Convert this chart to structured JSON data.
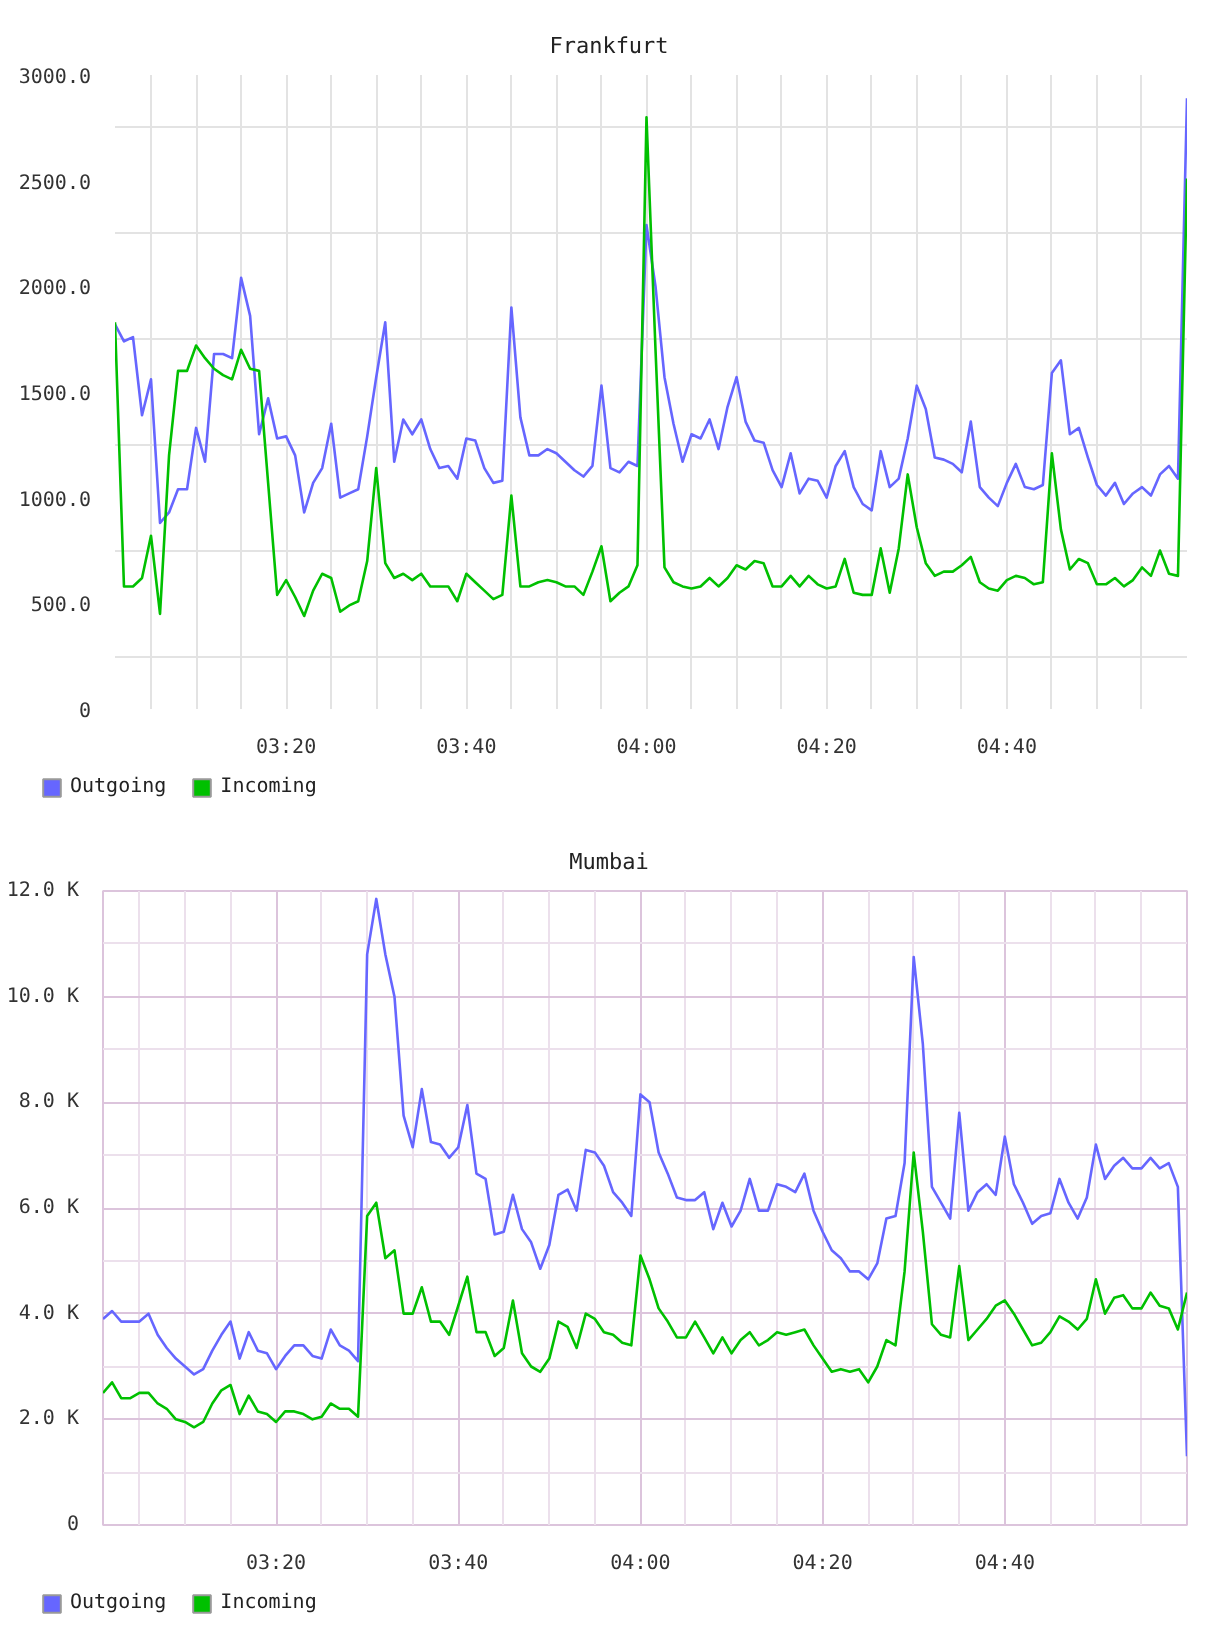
{
  "chart_data": [
    {
      "type": "line",
      "title": "Frankfurt",
      "x": [
        3.0167,
        3.0333,
        3.05,
        3.0667,
        3.0833,
        3.1,
        3.1167,
        3.1333,
        3.15,
        3.1667,
        3.1833,
        3.2,
        3.2167,
        3.2333,
        3.25,
        3.2667,
        3.2833,
        3.3,
        3.3167,
        3.3333,
        3.35,
        3.3667,
        3.3833,
        3.4,
        3.4167,
        3.4333,
        3.45,
        3.4667,
        3.4833,
        3.5,
        3.5167,
        3.5333,
        3.55,
        3.5667,
        3.5833,
        3.6,
        3.6167,
        3.6333,
        3.65,
        3.6667,
        3.6833,
        3.7,
        3.7167,
        3.7333,
        3.75,
        3.7667,
        3.7833,
        3.8,
        3.8167,
        3.8333,
        3.85,
        3.8667,
        3.8833,
        3.9,
        3.9167,
        3.9333,
        3.95,
        3.9667,
        3.9833,
        4.0,
        4.0167,
        4.0333,
        4.05,
        4.0667,
        4.0833,
        4.1,
        4.1167,
        4.1333,
        4.15,
        4.1667,
        4.1833,
        4.2,
        4.2167,
        4.2333,
        4.25,
        4.2667,
        4.2833,
        4.3,
        4.3167,
        4.3333,
        4.35,
        4.3667,
        4.3833,
        4.4,
        4.4167,
        4.4333,
        4.45,
        4.4667,
        4.4833,
        4.5,
        4.5167,
        4.5333,
        4.55,
        4.5667,
        4.5833,
        4.6,
        4.6167,
        4.6333,
        4.65,
        4.6667,
        4.6833,
        4.7,
        4.7167,
        4.7333,
        4.75,
        4.7667,
        4.7833,
        4.8,
        4.8167,
        4.8333,
        4.85,
        4.8667,
        4.8833,
        4.9,
        4.9167,
        4.9333,
        4.95,
        4.9667,
        4.9833,
        5.0
      ],
      "series": [
        {
          "name": "Outgoing",
          "color": "#6666ff",
          "values": [
            1820,
            1740,
            1760,
            1390,
            1560,
            880,
            930,
            1040,
            1040,
            1330,
            1170,
            1680,
            1680,
            1660,
            2040,
            1860,
            1300,
            1470,
            1280,
            1290,
            1200,
            930,
            1070,
            1140,
            1350,
            1000,
            1020,
            1040,
            1290,
            1570,
            1830,
            1170,
            1370,
            1300,
            1370,
            1230,
            1140,
            1150,
            1090,
            1280,
            1270,
            1140,
            1070,
            1080,
            1900,
            1380,
            1200,
            1200,
            1230,
            1210,
            1170,
            1130,
            1100,
            1150,
            1530,
            1140,
            1120,
            1170,
            1150,
            2290,
            2000,
            1570,
            1350,
            1170,
            1300,
            1280,
            1370,
            1230,
            1430,
            1570,
            1360,
            1270,
            1260,
            1130,
            1050,
            1210,
            1020,
            1090,
            1080,
            1000,
            1150,
            1220,
            1050,
            970,
            940,
            1220,
            1050,
            1090,
            1280,
            1530,
            1420,
            1190,
            1180,
            1160,
            1120,
            1360,
            1050,
            1000,
            960,
            1070,
            1160,
            1050,
            1040,
            1060,
            1590,
            1650,
            1300,
            1330,
            1190,
            1060,
            1010,
            1070,
            970,
            1020,
            1050,
            1010,
            1110,
            1150,
            1090,
            2890
          ]
        },
        {
          "name": "Incoming",
          "color": "#00c000",
          "values": [
            1830,
            580,
            580,
            620,
            820,
            450,
            1200,
            1600,
            1600,
            1720,
            1660,
            1610,
            1580,
            1560,
            1700,
            1610,
            1600,
            1070,
            540,
            610,
            530,
            440,
            560,
            640,
            620,
            460,
            490,
            510,
            700,
            1140,
            690,
            620,
            640,
            610,
            640,
            580,
            580,
            580,
            510,
            640,
            600,
            560,
            520,
            540,
            1010,
            580,
            580,
            600,
            610,
            600,
            580,
            580,
            540,
            650,
            770,
            510,
            550,
            580,
            680,
            2800,
            1700,
            670,
            600,
            580,
            570,
            580,
            620,
            580,
            620,
            680,
            660,
            700,
            690,
            580,
            580,
            630,
            580,
            630,
            590,
            570,
            580,
            710,
            550,
            540,
            540,
            760,
            550,
            760,
            1110,
            860,
            690,
            630,
            650,
            650,
            680,
            720,
            600,
            570,
            560,
            610,
            630,
            620,
            590,
            600,
            1210,
            850,
            660,
            710,
            690,
            590,
            590,
            620,
            580,
            610,
            670,
            630,
            750,
            640,
            630,
            2510
          ]
        }
      ],
      "xlim": [
        3.0167,
        5.0
      ],
      "xticks": [
        {
          "value": 3.0833,
          "label": null
        },
        {
          "value": 3.1667,
          "label": null
        },
        {
          "value": 3.25,
          "label": null
        },
        {
          "value": 3.3333,
          "label": "03:20"
        },
        {
          "value": 3.4167,
          "label": null
        },
        {
          "value": 3.5,
          "label": null
        },
        {
          "value": 3.5833,
          "label": null
        },
        {
          "value": 3.6667,
          "label": "03:40"
        },
        {
          "value": 3.75,
          "label": null
        },
        {
          "value": 3.8333,
          "label": null
        },
        {
          "value": 3.9167,
          "label": null
        },
        {
          "value": 4.0,
          "label": "04:00"
        },
        {
          "value": 4.0833,
          "label": null
        },
        {
          "value": 4.1667,
          "label": null
        },
        {
          "value": 4.25,
          "label": null
        },
        {
          "value": 4.3333,
          "label": "04:20"
        },
        {
          "value": 4.4167,
          "label": null
        },
        {
          "value": 4.5,
          "label": null
        },
        {
          "value": 4.5833,
          "label": null
        },
        {
          "value": 4.6667,
          "label": "04:40"
        },
        {
          "value": 4.75,
          "label": null
        },
        {
          "value": 4.8333,
          "label": null
        },
        {
          "value": 4.9167,
          "label": null
        }
      ],
      "ylim": [
        0,
        3000
      ],
      "yticks": [
        0,
        {
          "value": 250,
          "label": null
        },
        {
          "value": 500,
          "label": "500.0"
        },
        {
          "value": 750,
          "label": null
        },
        {
          "value": 1000,
          "label": "1000.0"
        },
        {
          "value": 1250,
          "label": null
        },
        {
          "value": 1500,
          "label": "1500.0"
        },
        {
          "value": 1750,
          "label": null
        },
        {
          "value": 2000,
          "label": "2000.0"
        },
        {
          "value": 2250,
          "label": null
        },
        {
          "value": 2500,
          "label": "2500.0"
        },
        {
          "value": 2750,
          "label": null
        },
        {
          "value": 3000,
          "label": "3000.0"
        }
      ],
      "grid": true,
      "legend": "bottom left"
    },
    {
      "type": "line",
      "title": "Mumbai",
      "x": [
        3.0167,
        3.0333,
        3.05,
        3.0667,
        3.0833,
        3.1,
        3.1167,
        3.1333,
        3.15,
        3.1667,
        3.1833,
        3.2,
        3.2167,
        3.2333,
        3.25,
        3.2667,
        3.2833,
        3.3,
        3.3167,
        3.3333,
        3.35,
        3.3667,
        3.3833,
        3.4,
        3.4167,
        3.4333,
        3.45,
        3.4667,
        3.4833,
        3.5,
        3.5167,
        3.5333,
        3.55,
        3.5667,
        3.5833,
        3.6,
        3.6167,
        3.6333,
        3.65,
        3.6667,
        3.6833,
        3.7,
        3.7167,
        3.7333,
        3.75,
        3.7667,
        3.7833,
        3.8,
        3.8167,
        3.8333,
        3.85,
        3.8667,
        3.8833,
        3.9,
        3.9167,
        3.9333,
        3.95,
        3.9667,
        3.9833,
        4.0,
        4.0167,
        4.0333,
        4.05,
        4.0667,
        4.0833,
        4.1,
        4.1167,
        4.1333,
        4.15,
        4.1667,
        4.1833,
        4.2,
        4.2167,
        4.2333,
        4.25,
        4.2667,
        4.2833,
        4.3,
        4.3167,
        4.3333,
        4.35,
        4.3667,
        4.3833,
        4.4,
        4.4167,
        4.4333,
        4.45,
        4.4667,
        4.4833,
        4.5,
        4.5167,
        4.5333,
        4.55,
        4.5667,
        4.5833,
        4.6,
        4.6167,
        4.6333,
        4.65,
        4.6667,
        4.6833,
        4.7,
        4.7167,
        4.7333,
        4.75,
        4.7667,
        4.7833,
        4.8,
        4.8167,
        4.8333,
        4.85,
        4.8667,
        4.8833,
        4.9,
        4.9167,
        4.9333,
        4.95,
        4.9667,
        4.9833,
        5.0
      ],
      "series": [
        {
          "name": "Outgoing",
          "color": "#6666ff",
          "values": [
            3900,
            4050,
            3850,
            3850,
            3850,
            4000,
            3600,
            3350,
            3150,
            3000,
            2850,
            2950,
            3300,
            3600,
            3850,
            3150,
            3650,
            3300,
            3250,
            2950,
            3200,
            3400,
            3400,
            3200,
            3150,
            3700,
            3400,
            3300,
            3100,
            10800,
            11850,
            10800,
            10000,
            7750,
            7150,
            8250,
            7250,
            7200,
            6950,
            7150,
            7950,
            6650,
            6550,
            5500,
            5550,
            6250,
            5600,
            5350,
            4850,
            5300,
            6250,
            6350,
            5950,
            7100,
            7050,
            6800,
            6300,
            6100,
            5850,
            8150,
            8000,
            7050,
            6650,
            6200,
            6150,
            6150,
            6300,
            5600,
            6100,
            5650,
            5950,
            6550,
            5950,
            5950,
            6450,
            6400,
            6300,
            6650,
            5950,
            5550,
            5200,
            5050,
            4800,
            4800,
            4650,
            4950,
            5800,
            5850,
            6850,
            10750,
            9100,
            6400,
            6100,
            5800,
            7800,
            5950,
            6300,
            6450,
            6250,
            7350,
            6450,
            6100,
            5700,
            5850,
            5900,
            6550,
            6100,
            5800,
            6200,
            7200,
            6550,
            6800,
            6950,
            6750,
            6750,
            6950,
            6750,
            6850,
            6400,
            1300
          ]
        },
        {
          "name": "Incoming",
          "color": "#00c000",
          "values": [
            2500,
            2700,
            2400,
            2400,
            2500,
            2500,
            2300,
            2200,
            2000,
            1950,
            1850,
            1950,
            2300,
            2550,
            2650,
            2100,
            2450,
            2150,
            2100,
            1950,
            2150,
            2150,
            2100,
            2000,
            2050,
            2300,
            2200,
            2200,
            2050,
            5850,
            6100,
            5050,
            5200,
            4000,
            4000,
            4500,
            3850,
            3850,
            3600,
            4150,
            4700,
            3650,
            3650,
            3200,
            3350,
            4250,
            3250,
            3000,
            2900,
            3150,
            3850,
            3750,
            3350,
            4000,
            3900,
            3650,
            3600,
            3450,
            3400,
            5100,
            4650,
            4100,
            3850,
            3550,
            3550,
            3850,
            3550,
            3250,
            3550,
            3250,
            3500,
            3650,
            3400,
            3500,
            3650,
            3600,
            3650,
            3700,
            3400,
            3150,
            2900,
            2950,
            2900,
            2950,
            2700,
            3000,
            3500,
            3400,
            4800,
            7050,
            5550,
            3800,
            3600,
            3550,
            4900,
            3500,
            3700,
            3900,
            4150,
            4250,
            4000,
            3700,
            3400,
            3450,
            3650,
            3950,
            3850,
            3700,
            3900,
            4650,
            4000,
            4300,
            4350,
            4100,
            4100,
            4400,
            4150,
            4100,
            3700,
            4400
          ]
        }
      ],
      "xlim": [
        3.0167,
        5.0
      ],
      "xticks": [
        {
          "value": 3.0833,
          "label": null
        },
        {
          "value": 3.1667,
          "label": null
        },
        {
          "value": 3.25,
          "label": null
        },
        {
          "value": 3.3333,
          "label": "03:20"
        },
        {
          "value": 3.4167,
          "label": null
        },
        {
          "value": 3.5,
          "label": null
        },
        {
          "value": 3.5833,
          "label": null
        },
        {
          "value": 3.6667,
          "label": "03:40"
        },
        {
          "value": 3.75,
          "label": null
        },
        {
          "value": 3.8333,
          "label": null
        },
        {
          "value": 3.9167,
          "label": null
        },
        {
          "value": 4.0,
          "label": "04:00"
        },
        {
          "value": 4.0833,
          "label": null
        },
        {
          "value": 4.1667,
          "label": null
        },
        {
          "value": 4.25,
          "label": null
        },
        {
          "value": 4.3333,
          "label": "04:20"
        },
        {
          "value": 4.4167,
          "label": null
        },
        {
          "value": 4.5,
          "label": null
        },
        {
          "value": 4.5833,
          "label": null
        },
        {
          "value": 4.6667,
          "label": "04:40"
        },
        {
          "value": 4.75,
          "label": null
        },
        {
          "value": 4.8333,
          "label": null
        },
        {
          "value": 4.9167,
          "label": null
        },
        {
          "value": 5.0,
          "label": null
        }
      ],
      "ylim": [
        0,
        12000
      ],
      "yticks": [
        0,
        {
          "value": 1000,
          "label": null
        },
        {
          "value": 2000,
          "label": "2.0 K"
        },
        {
          "value": 3000,
          "label": null
        },
        {
          "value": 4000,
          "label": "4.0 K"
        },
        {
          "value": 5000,
          "label": null
        },
        {
          "value": 6000,
          "label": "6.0 K"
        },
        {
          "value": 7000,
          "label": null
        },
        {
          "value": 8000,
          "label": "8.0 K"
        },
        {
          "value": 9000,
          "label": null
        },
        {
          "value": 10000,
          "label": "10.0 K"
        },
        {
          "value": 11000,
          "label": null
        },
        {
          "value": 12000,
          "label": "12.0 K"
        }
      ],
      "grid": true,
      "legend": "bottom left"
    }
  ]
}
